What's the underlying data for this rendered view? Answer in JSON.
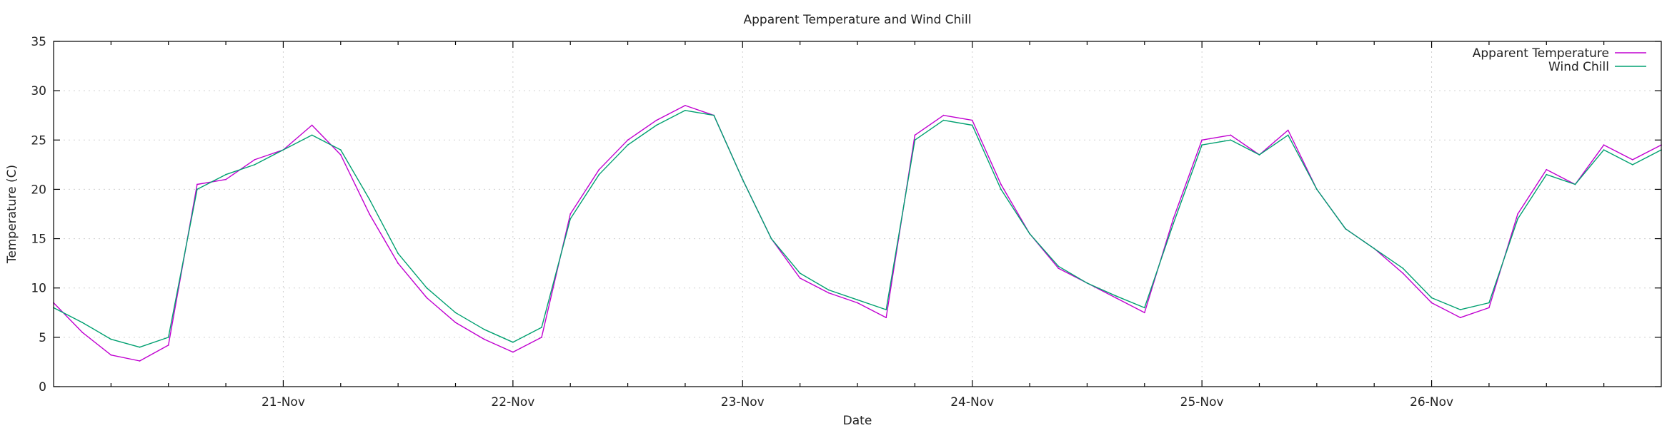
{
  "chart_data": {
    "type": "line",
    "title": "Apparent Temperature and Wind Chill",
    "xlabel": "Date",
    "ylabel": "Temperature (C)",
    "x_range": [
      "2023-11-20 00:00",
      "2023-11-27 00:00"
    ],
    "ylim": [
      0,
      35
    ],
    "yticks": [
      0,
      5,
      10,
      15,
      20,
      25,
      30,
      35
    ],
    "xticks": [
      {
        "label": "21-Nov",
        "x": "2023-11-21 00:00"
      },
      {
        "label": "22-Nov",
        "x": "2023-11-22 00:00"
      },
      {
        "label": "23-Nov",
        "x": "2023-11-23 00:00"
      },
      {
        "label": "24-Nov",
        "x": "2023-11-24 00:00"
      },
      {
        "label": "25-Nov",
        "x": "2023-11-25 00:00"
      },
      {
        "label": "26-Nov",
        "x": "2023-11-26 00:00"
      }
    ],
    "grid": true,
    "legend_position": "top-right",
    "series": [
      {
        "name": "Apparent Temperature",
        "color": "#c000d0",
        "x": [
          "2023-11-20 00:00",
          "2023-11-20 03:00",
          "2023-11-20 06:00",
          "2023-11-20 09:00",
          "2023-11-20 12:00",
          "2023-11-20 15:00",
          "2023-11-20 18:00",
          "2023-11-20 21:00",
          "2023-11-21 00:00",
          "2023-11-21 03:00",
          "2023-11-21 06:00",
          "2023-11-21 09:00",
          "2023-11-21 12:00",
          "2023-11-21 15:00",
          "2023-11-21 18:00",
          "2023-11-21 21:00",
          "2023-11-22 00:00",
          "2023-11-22 03:00",
          "2023-11-22 06:00",
          "2023-11-22 09:00",
          "2023-11-22 12:00",
          "2023-11-22 15:00",
          "2023-11-22 18:00",
          "2023-11-22 21:00",
          "2023-11-23 00:00",
          "2023-11-23 03:00",
          "2023-11-23 06:00",
          "2023-11-23 09:00",
          "2023-11-23 12:00",
          "2023-11-23 15:00",
          "2023-11-23 18:00",
          "2023-11-23 21:00",
          "2023-11-24 00:00",
          "2023-11-24 03:00",
          "2023-11-24 06:00",
          "2023-11-24 09:00",
          "2023-11-24 12:00",
          "2023-11-24 15:00",
          "2023-11-24 18:00",
          "2023-11-24 21:00",
          "2023-11-25 00:00",
          "2023-11-25 03:00",
          "2023-11-25 06:00",
          "2023-11-25 09:00",
          "2023-11-25 12:00",
          "2023-11-25 15:00",
          "2023-11-25 18:00",
          "2023-11-25 21:00",
          "2023-11-26 00:00",
          "2023-11-26 03:00",
          "2023-11-26 06:00",
          "2023-11-26 09:00",
          "2023-11-26 12:00",
          "2023-11-26 15:00",
          "2023-11-26 18:00",
          "2023-11-26 21:00",
          "2023-11-27 00:00"
        ],
        "y": [
          8.5,
          5.5,
          3.2,
          2.6,
          4.2,
          20.5,
          21.0,
          23.0,
          24.0,
          26.5,
          23.5,
          17.5,
          12.5,
          9.0,
          6.5,
          4.8,
          3.5,
          5.0,
          17.5,
          22.0,
          25.0,
          27.0,
          28.5,
          27.5,
          21.0,
          15.0,
          11.0,
          9.5,
          8.5,
          7.0,
          25.5,
          27.5,
          27.0,
          20.5,
          15.5,
          12.0,
          10.5,
          9.0,
          7.5,
          17.0,
          25.0,
          25.5,
          23.5,
          26.0,
          20.0,
          16.0,
          14.0,
          11.5,
          8.5,
          7.0,
          8.0,
          17.5,
          22.0,
          20.5,
          24.5,
          23.0,
          24.5
        ]
      },
      {
        "name": "Wind Chill",
        "color": "#00a070",
        "x": [
          "2023-11-20 00:00",
          "2023-11-20 03:00",
          "2023-11-20 06:00",
          "2023-11-20 09:00",
          "2023-11-20 12:00",
          "2023-11-20 15:00",
          "2023-11-20 18:00",
          "2023-11-20 21:00",
          "2023-11-21 00:00",
          "2023-11-21 03:00",
          "2023-11-21 06:00",
          "2023-11-21 09:00",
          "2023-11-21 12:00",
          "2023-11-21 15:00",
          "2023-11-21 18:00",
          "2023-11-21 21:00",
          "2023-11-22 00:00",
          "2023-11-22 03:00",
          "2023-11-22 06:00",
          "2023-11-22 09:00",
          "2023-11-22 12:00",
          "2023-11-22 15:00",
          "2023-11-22 18:00",
          "2023-11-22 21:00",
          "2023-11-23 00:00",
          "2023-11-23 03:00",
          "2023-11-23 06:00",
          "2023-11-23 09:00",
          "2023-11-23 12:00",
          "2023-11-23 15:00",
          "2023-11-23 18:00",
          "2023-11-23 21:00",
          "2023-11-24 00:00",
          "2023-11-24 03:00",
          "2023-11-24 06:00",
          "2023-11-24 09:00",
          "2023-11-24 12:00",
          "2023-11-24 15:00",
          "2023-11-24 18:00",
          "2023-11-24 21:00",
          "2023-11-25 00:00",
          "2023-11-25 03:00",
          "2023-11-25 06:00",
          "2023-11-25 09:00",
          "2023-11-25 12:00",
          "2023-11-25 15:00",
          "2023-11-25 18:00",
          "2023-11-25 21:00",
          "2023-11-26 00:00",
          "2023-11-26 03:00",
          "2023-11-26 06:00",
          "2023-11-26 09:00",
          "2023-11-26 12:00",
          "2023-11-26 15:00",
          "2023-11-26 18:00",
          "2023-11-26 21:00",
          "2023-11-27 00:00"
        ],
        "y": [
          8.0,
          6.5,
          4.8,
          4.0,
          5.0,
          20.0,
          21.5,
          22.5,
          24.0,
          25.5,
          24.0,
          19.0,
          13.5,
          10.0,
          7.5,
          5.8,
          4.5,
          6.0,
          17.0,
          21.5,
          24.5,
          26.5,
          28.0,
          27.5,
          21.0,
          15.0,
          11.5,
          9.8,
          8.8,
          7.8,
          25.0,
          27.0,
          26.5,
          20.0,
          15.5,
          12.2,
          10.5,
          9.2,
          8.0,
          16.5,
          24.5,
          25.0,
          23.5,
          25.5,
          20.0,
          16.0,
          14.0,
          12.0,
          9.0,
          7.8,
          8.5,
          17.0,
          21.5,
          20.5,
          24.0,
          22.5,
          24.0
        ]
      }
    ]
  }
}
